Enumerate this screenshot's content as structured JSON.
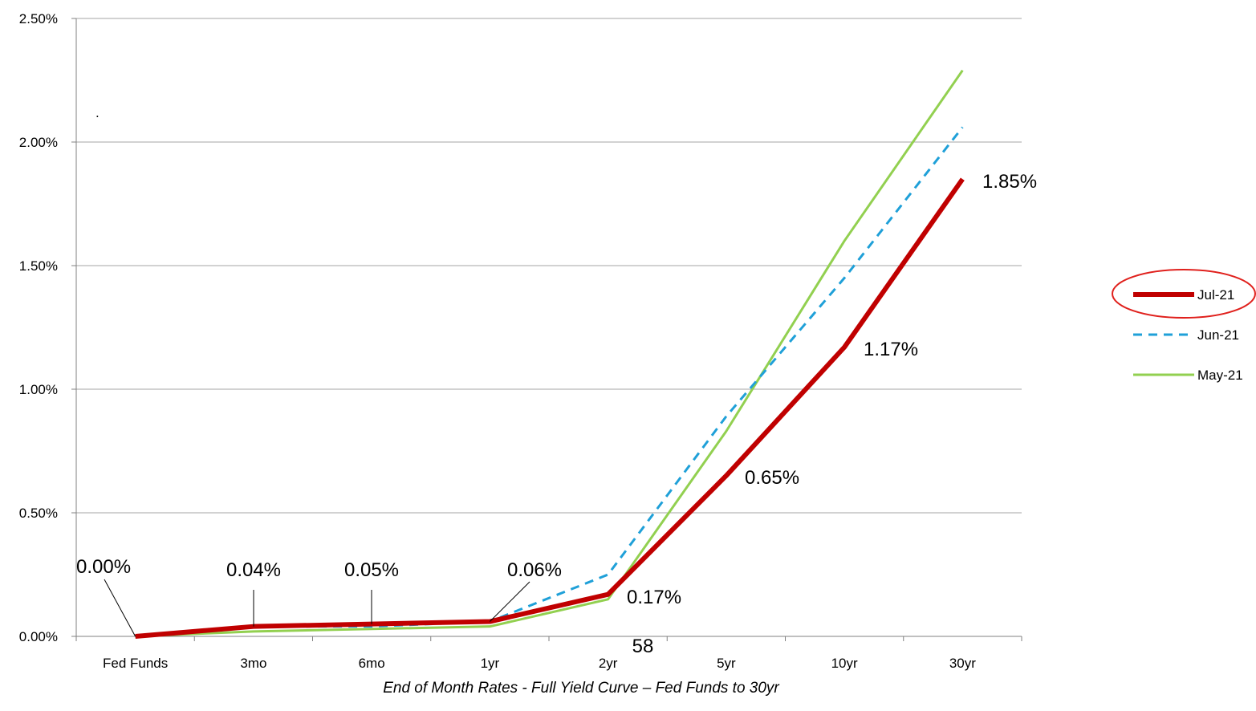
{
  "page_number": "58",
  "stray_dot": ".",
  "chart_data": {
    "type": "line",
    "title": "",
    "xlabel": "End of Month Rates - Full Yield Curve – Fed Funds to 30yr",
    "ylabel": "",
    "categories": [
      "Fed Funds",
      "3mo",
      "6mo",
      "1yr",
      "2yr",
      "5yr",
      "10yr",
      "30yr"
    ],
    "ylim": [
      0,
      2.5
    ],
    "yticks": [
      0,
      0.5,
      1.0,
      1.5,
      2.0,
      2.5
    ],
    "ytick_labels": [
      "0.00%",
      "0.50%",
      "1.00%",
      "1.50%",
      "2.00%",
      "2.50%"
    ],
    "grid": "horizontal",
    "legend_position": "right",
    "series": [
      {
        "name": "Jul-21",
        "values": [
          0.0,
          0.04,
          0.05,
          0.06,
          0.17,
          0.65,
          1.17,
          1.85
        ],
        "color": "#C00000",
        "style": "solid-thick",
        "data_labels": [
          "0.00%",
          "0.04%",
          "0.05%",
          "0.06%",
          "0.17%",
          "0.65%",
          "1.17%",
          "1.85%"
        ],
        "highlighted": true
      },
      {
        "name": "Jun-21",
        "values": [
          0.0,
          0.04,
          0.04,
          0.06,
          0.25,
          0.89,
          1.45,
          2.06
        ],
        "color": "#1FA0D8",
        "style": "dashed"
      },
      {
        "name": "May-21",
        "values": [
          0.0,
          0.02,
          0.03,
          0.04,
          0.15,
          0.83,
          1.6,
          2.29
        ],
        "color": "#92D050",
        "style": "solid"
      }
    ]
  }
}
